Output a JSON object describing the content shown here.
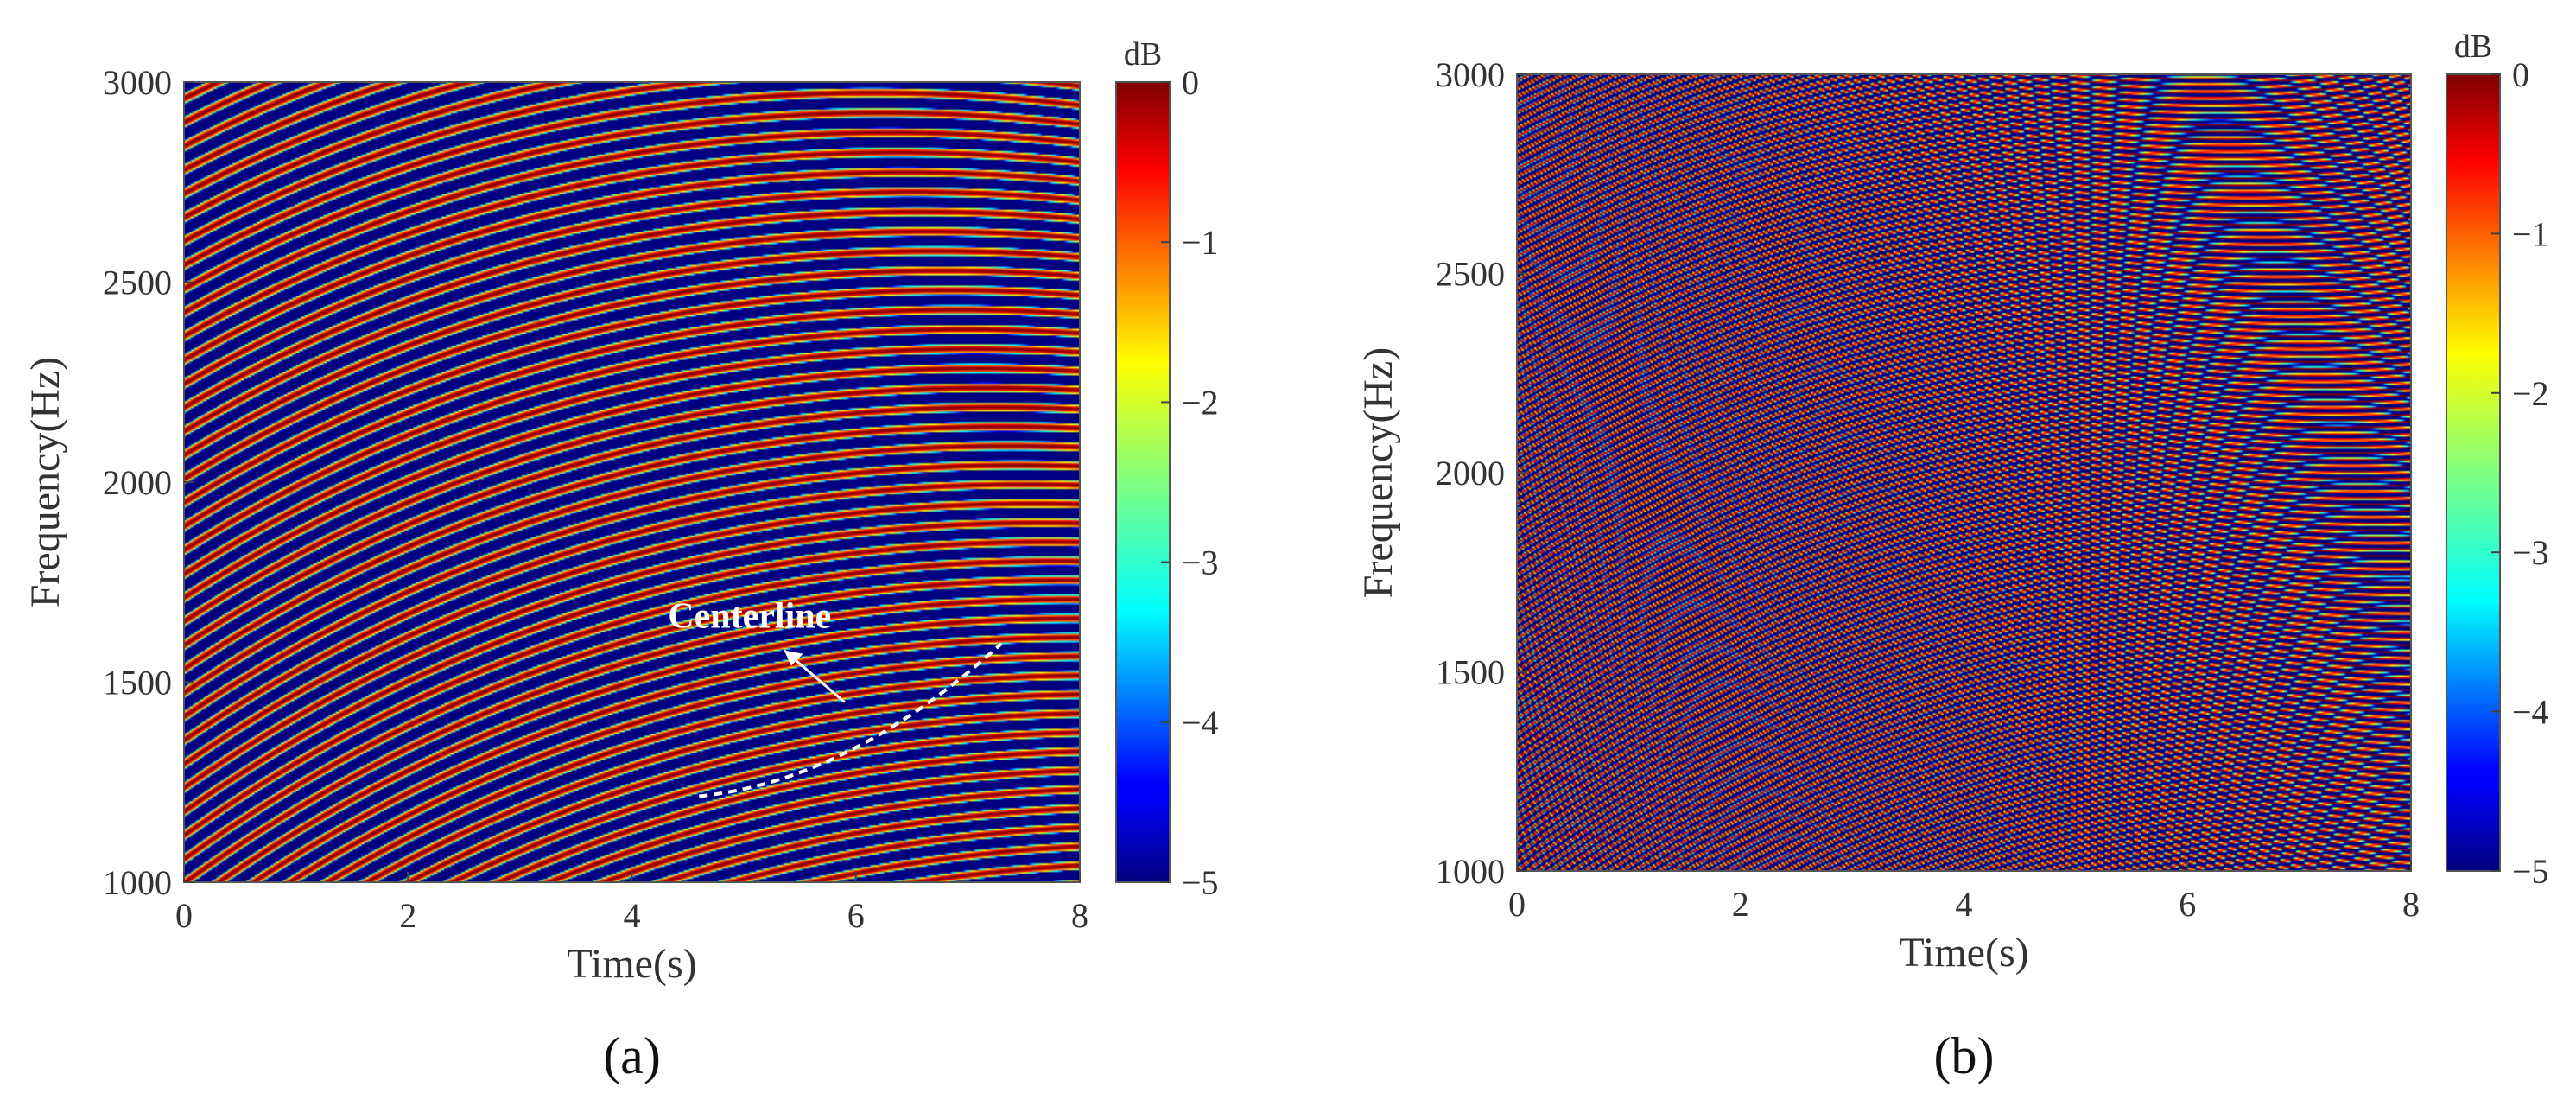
{
  "chart_data": [
    {
      "type": "heatmap",
      "panel_label": "(a)",
      "xlabel": "Time(s)",
      "ylabel": "Frequency(Hz)",
      "xlim": [
        0,
        8
      ],
      "ylim": [
        1000,
        3000
      ],
      "xticks": [
        "0",
        "2",
        "4",
        "6",
        "8"
      ],
      "yticks": [
        "1000",
        "1500",
        "2000",
        "2500",
        "3000"
      ],
      "colorbar": {
        "label": "dB",
        "range": [
          -5,
          0
        ],
        "ticks": [
          "0",
          "−1",
          "−2",
          "−3",
          "−4",
          "−5"
        ],
        "colormap": "jet"
      },
      "pattern": {
        "description": "curved hyperbolic-like stripes",
        "approx_stripe_count": 32
      },
      "annotation": {
        "text": "Centerline",
        "curve_t_range": [
          4.6,
          7.3
        ],
        "arrow_target": [
          5.9,
          1450
        ]
      }
    },
    {
      "type": "heatmap",
      "panel_label": "(b)",
      "xlabel": "Time(s)",
      "ylabel": "Frequency(Hz)",
      "xlim": [
        0,
        8
      ],
      "ylim": [
        1000,
        3000
      ],
      "xticks": [
        "0",
        "2",
        "4",
        "6",
        "8"
      ],
      "yticks": [
        "1000",
        "1500",
        "2000",
        "2500",
        "3000"
      ],
      "colorbar": {
        "label": "dB",
        "range": [
          -5,
          0
        ],
        "ticks": [
          "0",
          "−1",
          "−2",
          "−3",
          "−4",
          "−5"
        ],
        "colormap": "jet"
      },
      "pattern": {
        "description": "dense fine-grained curved stripes",
        "approx_stripe_count": 95
      }
    }
  ]
}
